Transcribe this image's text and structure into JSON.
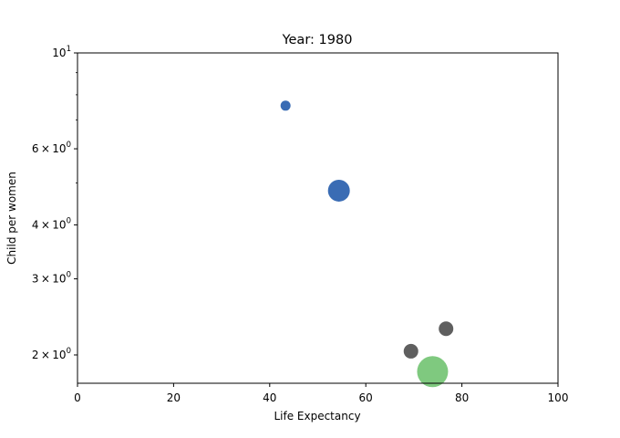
{
  "chart_data": {
    "type": "scatter",
    "title": "Year: 1980",
    "xlabel": "Life Expectancy",
    "ylabel": "Child per women",
    "xlim": [
      0,
      100
    ],
    "ylim": [
      1.72,
      10
    ],
    "yscale": "log",
    "grid": false,
    "x_ticks": [
      {
        "value": 0,
        "label": "0"
      },
      {
        "value": 20,
        "label": "20"
      },
      {
        "value": 40,
        "label": "40"
      },
      {
        "value": 60,
        "label": "60"
      },
      {
        "value": 80,
        "label": "80"
      },
      {
        "value": 100,
        "label": "100"
      }
    ],
    "y_ticks": [
      {
        "value": 2,
        "mantissa": "2",
        "exponent": "0"
      },
      {
        "value": 3,
        "mantissa": "3",
        "exponent": "0"
      },
      {
        "value": 4,
        "mantissa": "4",
        "exponent": "0"
      },
      {
        "value": 6,
        "mantissa": "6",
        "exponent": "0"
      },
      {
        "value": 10,
        "mantissa": "10",
        "exponent": "1"
      }
    ],
    "y_minor_ticks": [
      5,
      7,
      8,
      9
    ],
    "points": [
      {
        "x": 43.3,
        "y": 7.55,
        "size": 5.5,
        "color": "#3a6cb4"
      },
      {
        "x": 54.4,
        "y": 4.8,
        "size": 12,
        "color": "#3a6cb4"
      },
      {
        "x": 73.5,
        "y": 1.79,
        "size": 12,
        "color": "#3a6cb4"
      },
      {
        "x": 69.4,
        "y": 2.04,
        "size": 8,
        "color": "#5f5f5f"
      },
      {
        "x": 76.7,
        "y": 2.3,
        "size": 8,
        "color": "#5f5f5f"
      },
      {
        "x": 73.9,
        "y": 1.83,
        "size": 17,
        "color": "#7fc97f"
      }
    ],
    "times_symbol": "×"
  }
}
